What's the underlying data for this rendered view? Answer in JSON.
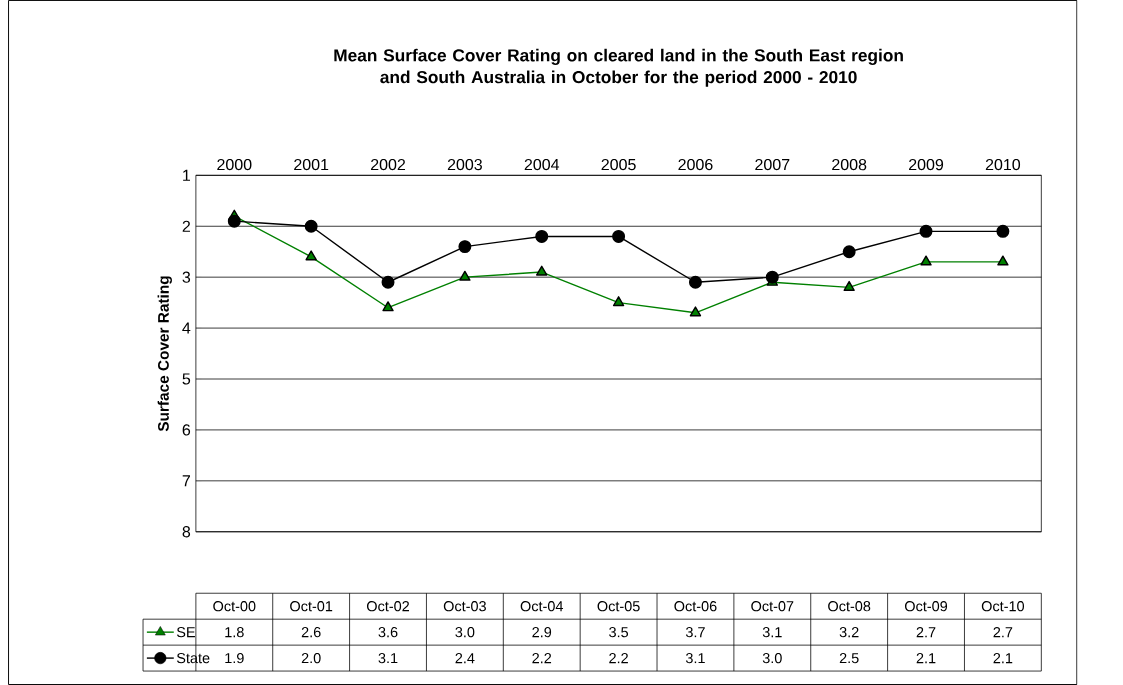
{
  "chart_data": {
    "type": "line",
    "title": "Mean Surface Cover Rating on cleared land in the South East region\nand South Australia in October for the period 2000 - 2010",
    "categories": [
      "2000",
      "2001",
      "2002",
      "2003",
      "2004",
      "2005",
      "2006",
      "2007",
      "2008",
      "2009",
      "2010"
    ],
    "ylabel": "Surface Cover Rating",
    "ylim": [
      8,
      1
    ],
    "yticks": [
      1,
      2,
      3,
      4,
      5,
      6,
      7,
      8
    ],
    "grid": "y",
    "legend": "bottom",
    "annotations": [
      "Oct-00",
      "Oct-01",
      "Oct-02",
      "Oct-03",
      "Oct-04",
      "Oct-05",
      "Oct-06",
      "Oct-07",
      "Oct-08",
      "Oct-09",
      "Oct-10"
    ],
    "series": [
      {
        "name": "SE",
        "color": "#008000",
        "marker": "triangle",
        "values": [
          1.8,
          2.6,
          3.6,
          3.0,
          2.9,
          3.5,
          3.7,
          3.1,
          3.2,
          2.7,
          2.7
        ],
        "value_labels": [
          "1.8",
          "2.6",
          "3.6",
          "3.0",
          "2.9",
          "3.5",
          "3.7",
          "3.1",
          "3.2",
          "2.7",
          "2.7"
        ]
      },
      {
        "name": "State",
        "color": "#000000",
        "marker": "circle",
        "values": [
          1.9,
          2.0,
          3.1,
          2.4,
          2.2,
          2.2,
          3.1,
          3.0,
          2.5,
          2.1,
          2.1
        ],
        "value_labels": [
          "1.9",
          "2.0",
          "3.1",
          "2.4",
          "2.2",
          "2.2",
          "3.1",
          "3.0",
          "2.5",
          "2.1",
          "2.1"
        ]
      }
    ]
  }
}
